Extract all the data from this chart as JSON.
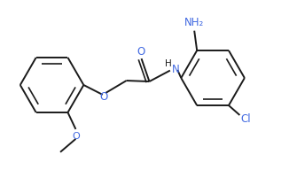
{
  "background_color": "#ffffff",
  "line_color": "#1a1a1a",
  "o_color": "#4169e1",
  "n_color": "#4169e1",
  "cl_color": "#4169e1",
  "figsize": [
    3.26,
    1.92
  ],
  "dpi": 100,
  "xlim": [
    0,
    6.5
  ],
  "ylim": [
    0,
    3.8
  ]
}
